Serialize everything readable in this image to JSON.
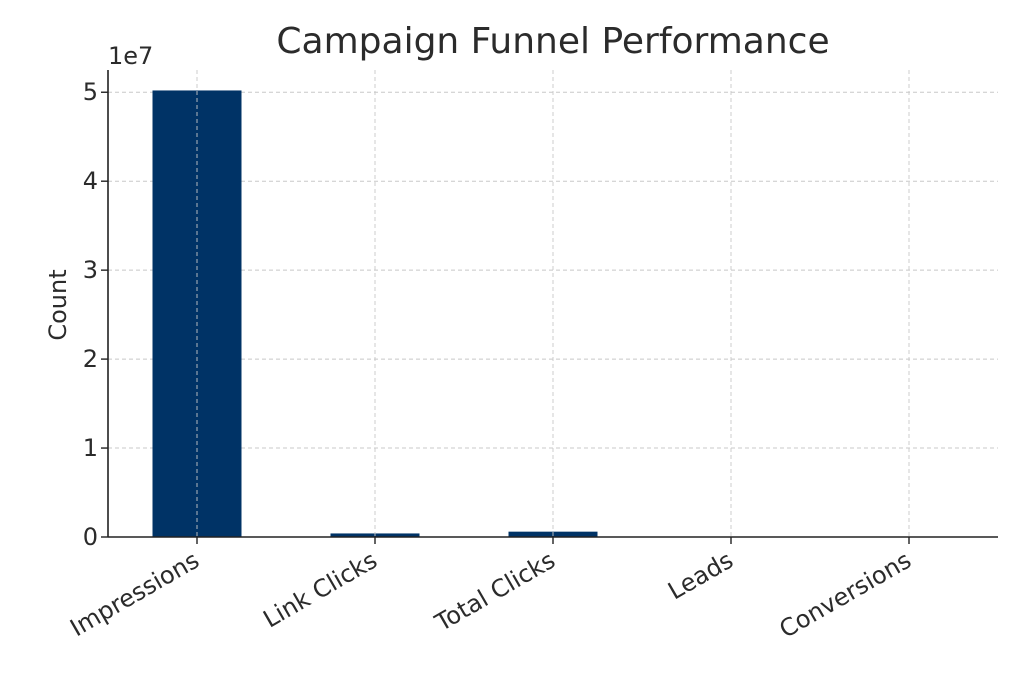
{
  "chart_data": {
    "type": "bar",
    "title": "Campaign Funnel Performance",
    "xlabel": "",
    "ylabel": "Count",
    "offset_label": "1e7",
    "categories": [
      "Impressions",
      "Link Clicks",
      "Total Clicks",
      "Leads",
      "Conversions"
    ],
    "values": [
      50200000,
      400000,
      600000,
      20000,
      5000
    ],
    "ylim": [
      0,
      52500000
    ],
    "yticks": [
      0,
      10000000,
      20000000,
      30000000,
      40000000,
      50000000
    ],
    "ytick_labels": [
      "0",
      "1",
      "2",
      "3",
      "4",
      "5"
    ],
    "grid": true,
    "bar_color": "#003366"
  }
}
